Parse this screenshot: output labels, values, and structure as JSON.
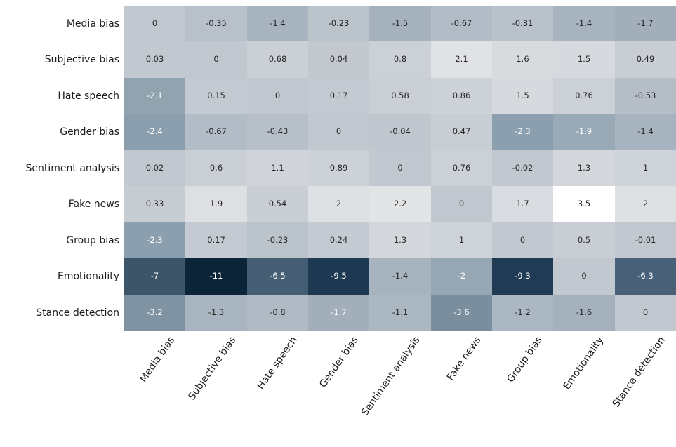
{
  "chart_data": {
    "type": "heatmap",
    "title": "",
    "xlabel": "",
    "ylabel": "",
    "row_labels": [
      "Media bias",
      "Subjective bias",
      "Hate speech",
      "Gender bias",
      "Sentiment analysis",
      "Fake news",
      "Group bias",
      "Emotionality",
      "Stance detection"
    ],
    "col_labels": [
      "Media bias",
      "Subjective bias",
      "Hate speech",
      "Gender bias",
      "Sentiment analysis",
      "Fake news",
      "Group bias",
      "Emotionality",
      "Stance detection"
    ],
    "values": [
      [
        "0",
        "-0.35",
        "-1.4",
        "-0.23",
        "-1.5",
        "-0.67",
        "-0.31",
        "-1.4",
        "-1.7"
      ],
      [
        "0.03",
        "0",
        "0.68",
        "0.04",
        "0.8",
        "2.1",
        "1.6",
        "1.5",
        "0.49"
      ],
      [
        "-2.1",
        "0.15",
        "0",
        "0.17",
        "0.58",
        "0.86",
        "1.5",
        "0.76",
        "-0.53"
      ],
      [
        "-2.4",
        "-0.67",
        "-0.43",
        "0",
        "-0.04",
        "0.47",
        "-2.3",
        "-1.9",
        "-1.4"
      ],
      [
        "0.02",
        "0.6",
        "1.1",
        "0.89",
        "0",
        "0.76",
        "-0.02",
        "1.3",
        "1"
      ],
      [
        "0.33",
        "1.9",
        "0.54",
        "2",
        "2.2",
        "0",
        "1.7",
        "3.5",
        "2"
      ],
      [
        "-2.3",
        "0.17",
        "-0.23",
        "0.24",
        "1.3",
        "1",
        "0",
        "0.5",
        "-0.01"
      ],
      [
        "-7",
        "-11",
        "-6.5",
        "-9.5",
        "-1.4",
        "-2",
        "-9.3",
        "0",
        "-6.3"
      ],
      [
        "-3.2",
        "-1.3",
        "-0.8",
        "-1.7",
        "-1.1",
        "-3.6",
        "-1.2",
        "-1.6",
        "0"
      ]
    ],
    "white_text": [
      [
        0,
        0,
        0,
        0,
        0,
        0,
        0,
        0,
        0
      ],
      [
        0,
        0,
        0,
        0,
        0,
        0,
        0,
        0,
        0
      ],
      [
        1,
        0,
        0,
        0,
        0,
        0,
        0,
        0,
        0
      ],
      [
        1,
        0,
        0,
        0,
        0,
        0,
        1,
        1,
        0
      ],
      [
        0,
        0,
        0,
        0,
        0,
        0,
        0,
        0,
        0
      ],
      [
        0,
        0,
        0,
        0,
        0,
        0,
        0,
        0,
        0
      ],
      [
        1,
        0,
        0,
        0,
        0,
        0,
        0,
        0,
        0
      ],
      [
        1,
        1,
        1,
        1,
        0,
        1,
        1,
        0,
        1
      ],
      [
        1,
        0,
        0,
        1,
        0,
        1,
        0,
        0,
        0
      ]
    ],
    "value_range": [
      -11,
      3.5
    ],
    "legend": "none",
    "colormap_anchors": [
      [
        -11,
        "#0B2437"
      ],
      [
        -9.5,
        "#1D3A52"
      ],
      [
        -7,
        "#3D5569"
      ],
      [
        -6.3,
        "#486179"
      ],
      [
        -3.6,
        "#7B8E9E"
      ],
      [
        -3.2,
        "#8093A2"
      ],
      [
        -2.3,
        "#8C9FAE"
      ],
      [
        -2.1,
        "#92A3B0"
      ],
      [
        -1.7,
        "#A2AFBB"
      ],
      [
        -1.4,
        "#A7B3BF"
      ],
      [
        -1.0,
        "#ACB8C2"
      ],
      [
        -0.35,
        "#B8C0C9"
      ],
      [
        0,
        "#C2C8CF"
      ],
      [
        0.5,
        "#C9CED5"
      ],
      [
        1,
        "#CED3D9"
      ],
      [
        1.5,
        "#D6D9DD"
      ],
      [
        2.1,
        "#E0E2E5"
      ],
      [
        2.2,
        "#E2E4E6"
      ],
      [
        3.5,
        "#FFFFFF"
      ]
    ],
    "annotation_colors": {
      "dark": "#262626",
      "light": "#ffffff"
    },
    "background_color": "#ffffff"
  }
}
